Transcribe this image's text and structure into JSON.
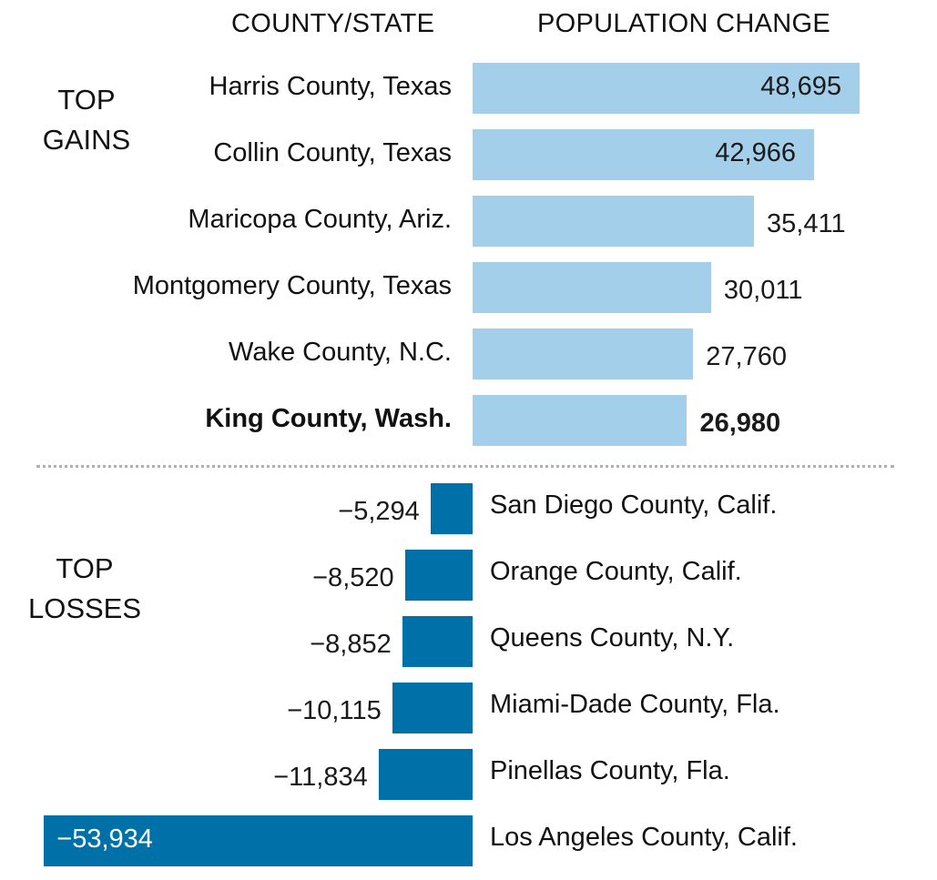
{
  "headers": {
    "county_state": "COUNTY/STATE",
    "population_change": "POPULATION CHANGE"
  },
  "sections": {
    "gains_label_line1": "TOP",
    "gains_label_line2": "GAINS",
    "losses_label_line1": "TOP",
    "losses_label_line2": "LOSSES"
  },
  "colors": {
    "gain_bar": "#a3cfea",
    "loss_bar": "#0070a8",
    "separator": "#b0b0b0",
    "text": "#111111",
    "loss_value_inside": "#ffffff"
  },
  "chart_data": {
    "type": "bar",
    "orientation": "horizontal",
    "title": "",
    "xlabel": "POPULATION CHANGE",
    "ylabel": "COUNTY/STATE",
    "xlim": [
      -53934,
      48695
    ],
    "grid": false,
    "legend": "none",
    "groups": [
      {
        "name": "TOP GAINS",
        "categories": [
          "Harris County, Texas",
          "Collin County, Texas",
          "Maricopa County, Ariz.",
          "Montgomery County, Texas",
          "Wake County, N.C.",
          "King County, Wash."
        ],
        "values": [
          48695,
          42966,
          35411,
          30011,
          27760,
          26980
        ],
        "labels": [
          "48,695",
          "42,966",
          "35,411",
          "30,011",
          "27,760",
          "26,980"
        ],
        "highlighted": "King County, Wash."
      },
      {
        "name": "TOP LOSSES",
        "categories": [
          "San Diego County, Calif.",
          "Orange County, Calif.",
          "Queens County, N.Y.",
          "Miami-Dade County, Fla.",
          "Pinellas County, Fla.",
          "Los Angeles County, Calif."
        ],
        "values": [
          -5294,
          -8520,
          -8852,
          -10115,
          -11834,
          -53934
        ],
        "labels": [
          "−5,294",
          "−8,520",
          "−8,852",
          "−10,115",
          "−11,834",
          "−53,934"
        ]
      }
    ]
  }
}
